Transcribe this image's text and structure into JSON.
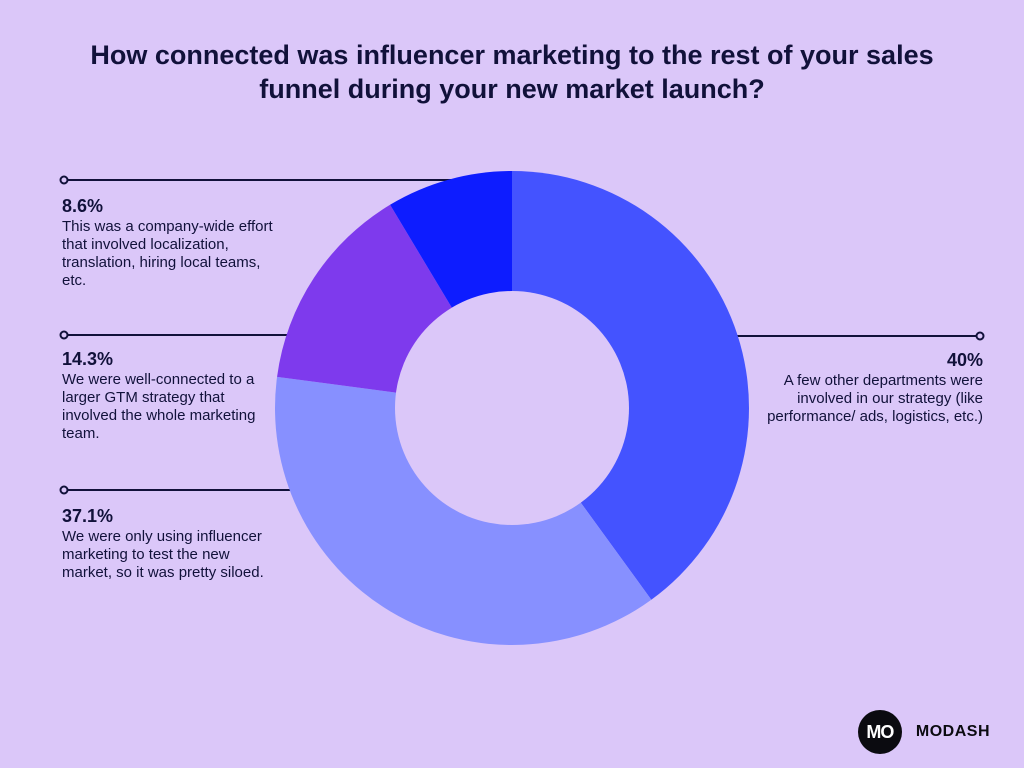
{
  "chart_data": {
    "type": "pie",
    "style": "donut",
    "title": "How connected was influencer marketing to the rest of your sales funnel during your new market launch?",
    "slices": [
      {
        "label": "40%",
        "value": 40,
        "description": "A few other departments were involved in our strategy (like performance/ ads, logistics, etc.)",
        "color": "#4453ff"
      },
      {
        "label": "37.1%",
        "value": 37.1,
        "description": "We were only using influencer marketing to test the new market, so it was pretty siloed.",
        "color": "#8790ff"
      },
      {
        "label": "14.3%",
        "value": 14.3,
        "description": "We were well-connected to a larger GTM strategy that involved the whole marketing team.",
        "color": "#7e3aed"
      },
      {
        "label": "8.6%",
        "value": 8.6,
        "description": "This was a company-wide effort that involved localization, translation, hiring local teams, etc.",
        "color": "#0d1cff"
      }
    ]
  },
  "brand": {
    "logo_text": "MO",
    "name": "MODASH"
  },
  "colors": {
    "background": "#dbc7f9",
    "text": "#11113a",
    "donut_hole": "#dbc7f9"
  }
}
